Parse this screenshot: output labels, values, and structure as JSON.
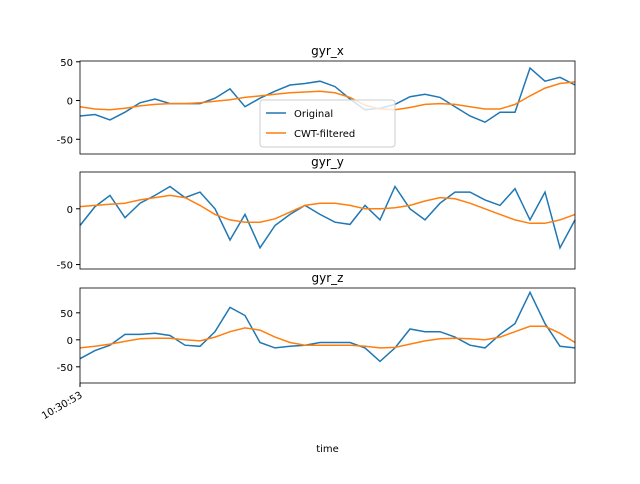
{
  "chart_data": [
    {
      "type": "line",
      "title": "gyr_x",
      "ylim": [
        -69,
        51
      ],
      "yticks": [
        -50,
        0,
        50
      ],
      "legend": "lower center",
      "series": [
        {
          "name": "Original",
          "color": "#1f77b4",
          "values": [
            -20,
            -18,
            -25,
            -15,
            -3,
            2,
            -4,
            -4,
            -4,
            3,
            15,
            -8,
            3,
            12,
            20,
            22,
            25,
            18,
            2,
            -12,
            -10,
            -5,
            5,
            8,
            4,
            -8,
            -20,
            -28,
            -15,
            -15,
            42,
            25,
            30,
            20
          ]
        },
        {
          "name": "CWT-filtered",
          "color": "#ff7f0e",
          "values": [
            -8,
            -11,
            -12,
            -10,
            -7,
            -5,
            -4,
            -4,
            -3,
            -1,
            1,
            4,
            6,
            8,
            10,
            11,
            12,
            10,
            4,
            -6,
            -11,
            -12,
            -9,
            -5,
            -4,
            -5,
            -8,
            -11,
            -11,
            -5,
            6,
            16,
            22,
            24
          ]
        }
      ]
    },
    {
      "type": "line",
      "title": "gyr_y",
      "ylim": [
        -54,
        33
      ],
      "yticks": [
        -50,
        0
      ],
      "series": [
        {
          "name": "Original",
          "color": "#1f77b4",
          "values": [
            -15,
            2,
            12,
            -8,
            5,
            12,
            20,
            10,
            15,
            0,
            -28,
            -5,
            -35,
            -15,
            -5,
            3,
            -5,
            -12,
            -14,
            3,
            -10,
            20,
            0,
            -10,
            5,
            15,
            15,
            8,
            3,
            18,
            -10,
            15,
            -35,
            -10
          ]
        },
        {
          "name": "CWT-filtered",
          "color": "#ff7f0e",
          "values": [
            2,
            3,
            4,
            5,
            8,
            10,
            12,
            10,
            3,
            -5,
            -10,
            -12,
            -12,
            -9,
            -3,
            3,
            5,
            5,
            3,
            0,
            0,
            1,
            3,
            7,
            10,
            9,
            5,
            0,
            -5,
            -10,
            -13,
            -13,
            -10,
            -5
          ]
        }
      ]
    },
    {
      "type": "line",
      "title": "gyr_z",
      "ylim": [
        -80,
        96
      ],
      "yticks": [
        -50,
        0,
        50
      ],
      "xlabel": "time",
      "categories": [
        "10:30:53",
        null,
        null,
        null,
        null,
        null,
        null,
        null,
        null,
        null,
        null,
        null,
        null,
        null,
        null,
        null,
        null,
        null,
        null,
        null,
        null,
        null,
        null,
        null,
        null,
        null,
        null,
        null,
        null,
        null,
        null,
        null,
        null,
        null
      ],
      "series": [
        {
          "name": "Original",
          "color": "#1f77b4",
          "values": [
            -35,
            -20,
            -10,
            10,
            10,
            12,
            8,
            -10,
            -12,
            15,
            60,
            45,
            -5,
            -15,
            -12,
            -10,
            -5,
            -5,
            -5,
            -15,
            -40,
            -15,
            20,
            15,
            15,
            5,
            -10,
            -15,
            10,
            30,
            88,
            30,
            -12,
            -15
          ]
        },
        {
          "name": "CWT-filtered",
          "color": "#ff7f0e",
          "values": [
            -15,
            -12,
            -8,
            -3,
            2,
            3,
            3,
            0,
            -2,
            5,
            15,
            22,
            18,
            5,
            -5,
            -10,
            -10,
            -10,
            -10,
            -12,
            -15,
            -14,
            -8,
            -2,
            2,
            3,
            2,
            0,
            5,
            15,
            25,
            25,
            12,
            -5
          ]
        }
      ]
    }
  ]
}
